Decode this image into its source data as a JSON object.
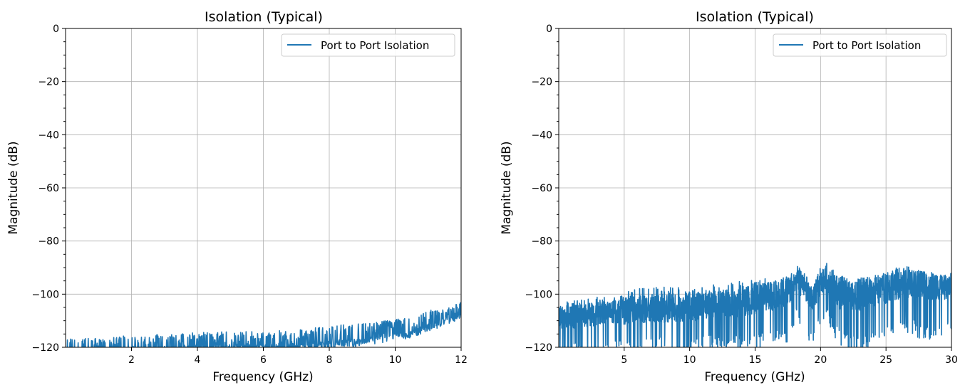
{
  "colors": {
    "series": "#1f77b4",
    "grid": "#b0b0b0",
    "axes": "#000000"
  },
  "chart_data": [
    {
      "type": "line",
      "title": "Isolation (Typical)",
      "xlabel": "Frequency (GHz)",
      "ylabel": "Magnitude (dB)",
      "xlim": [
        0,
        12
      ],
      "ylim": [
        -120,
        0
      ],
      "xticks": [
        2,
        4,
        6,
        8,
        10,
        12
      ],
      "xtick_labels": [
        "2",
        "4",
        "6",
        "8",
        "10",
        "12"
      ],
      "yticks": [
        0,
        -20,
        -40,
        -60,
        -80,
        -100,
        -120
      ],
      "ytick_labels": [
        "0",
        "−20",
        "−40",
        "−60",
        "−80",
        "−100",
        "−120"
      ],
      "grid": true,
      "legend": "top-right",
      "series": [
        {
          "name": "Port to Port Isolation",
          "color": "#1f77b4",
          "x": [
            0,
            1,
            2,
            3,
            4,
            5,
            6,
            7,
            8,
            9,
            10,
            10.5,
            11,
            11.5,
            12
          ],
          "y_trend": [
            -121,
            -120.5,
            -120,
            -119.5,
            -119,
            -119,
            -119,
            -118.5,
            -117.5,
            -116.5,
            -114.5,
            -113.5,
            -111,
            -109,
            -106
          ],
          "y_floor": -120,
          "y_peak": [
            -116.5,
            -116.5,
            -115.5,
            -115,
            -114.5,
            -114,
            -114,
            -113.5,
            -112,
            -111,
            -109.5,
            -108.5,
            -106,
            -105.5,
            -103
          ]
        }
      ]
    },
    {
      "type": "line",
      "title": "Isolation (Typical)",
      "xlabel": "Frequency (GHz)",
      "ylabel": "Magnitude (dB)",
      "xlim": [
        0,
        30
      ],
      "ylim": [
        -120,
        0
      ],
      "xticks": [
        5,
        10,
        15,
        20,
        25,
        30
      ],
      "xtick_labels": [
        "5",
        "10",
        "15",
        "20",
        "25",
        "30"
      ],
      "yticks": [
        0,
        -20,
        -40,
        -60,
        -80,
        -100,
        -120
      ],
      "ytick_labels": [
        "0",
        "−20",
        "−40",
        "−60",
        "−80",
        "−100",
        "−120"
      ],
      "grid": true,
      "legend": "top-right",
      "series": [
        {
          "name": "Port to Port Isolation",
          "color": "#1f77b4",
          "x": [
            0,
            2,
            4,
            6,
            8,
            10,
            12,
            14,
            16,
            17.5,
            18.3,
            19.3,
            20.3,
            21.5,
            23,
            25,
            26.5,
            28,
            30
          ],
          "y_trend": [
            -109,
            -108,
            -107,
            -106,
            -105.5,
            -105,
            -104,
            -103,
            -101,
            -99,
            -95,
            -102,
            -94,
            -100,
            -100,
            -98,
            -96,
            -97,
            -97
          ],
          "y_low": [
            -119,
            -118,
            -117,
            -117,
            -116,
            -116,
            -115,
            -115,
            -114,
            -112,
            -104,
            -114,
            -103,
            -114,
            -116,
            -112,
            -108,
            -112,
            -110
          ],
          "y_peak": [
            -103,
            -102,
            -100,
            -98,
            -97,
            -97,
            -96,
            -95,
            -94,
            -93,
            -89,
            -96,
            -87.5,
            -93,
            -94,
            -92,
            -88.5,
            -92,
            -92
          ]
        }
      ]
    }
  ]
}
